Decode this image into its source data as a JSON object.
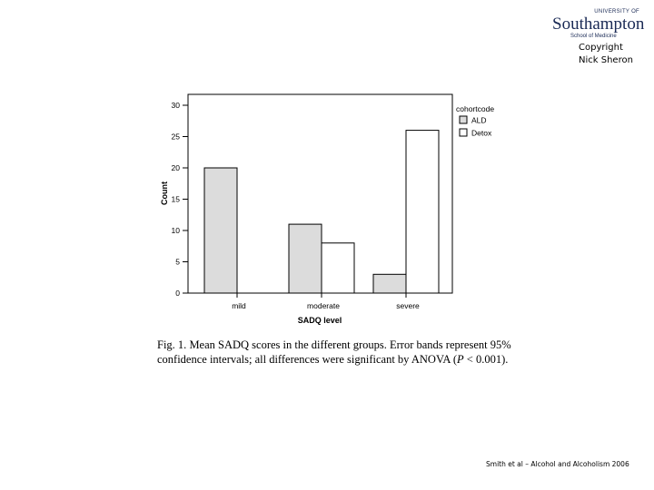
{
  "logo": {
    "top_text": "UNIVERSITY OF",
    "main_text": "Southampton",
    "sub_text": "School of Medicine",
    "color": "#1a2a55"
  },
  "copyright": {
    "line1": "Copyright",
    "line2": "Nick Sheron"
  },
  "chart_data": {
    "type": "bar",
    "categories": [
      "mild",
      "moderate",
      "severe"
    ],
    "series": [
      {
        "name": "ALD",
        "values": [
          20,
          11,
          3
        ],
        "color": "#dcdcdc"
      },
      {
        "name": "Detox",
        "values": [
          0,
          8,
          26
        ],
        "color": "#ffffff"
      }
    ],
    "xlabel": "SADQ level",
    "ylabel": "Count",
    "ylim": [
      0,
      30
    ],
    "yticks": [
      "0",
      "5",
      "10",
      "15",
      "20",
      "25",
      "30"
    ],
    "legend_title": "cohortcode",
    "legend_position": "right",
    "grid": false
  },
  "caption": {
    "fig_label": "Fig. 1.",
    "text_before": "Mean SADQ scores in the different groups. Error bands represent 95% confidence intervals; all differences were significant by ANOVA (",
    "p_symbol": "P",
    "text_after": " < 0.001)."
  },
  "footer": {
    "citation": "Smith et al – Alcohol and Alcoholism 2006"
  }
}
